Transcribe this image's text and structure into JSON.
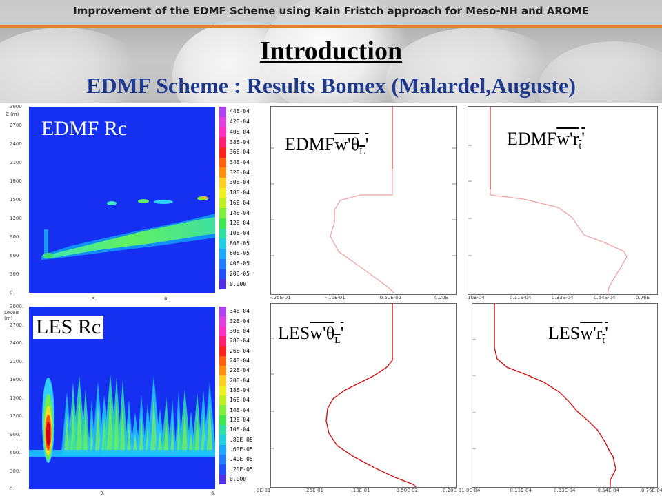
{
  "header": {
    "topbar": "Improvement of the EDMF Scheme using Kain Fristch approach for Meso-NH and AROME",
    "title": "Introduction",
    "subtitle": "EDMF Scheme : Results Bomex (Malardel,Auguste)"
  },
  "colors": {
    "accent_rule": "#e0822c",
    "subtitle": "#1f3a8c",
    "contour_background": "#1530f0",
    "edmf_profile_line": "#f3a0a0",
    "les_profile_line": "#d01010"
  },
  "edmf_rc": {
    "label": "EDMF Rc",
    "y_axis_title": "Z (m)",
    "y_ticks": [
      "3000",
      "2700",
      "2400",
      "2100",
      "1800",
      "1500",
      "1200",
      "900",
      "600",
      "300",
      "0"
    ],
    "x_ticks": [
      "3.",
      "6."
    ],
    "colorbar": [
      "44E-04",
      "42E-04",
      "40E-04",
      "38E-04",
      "36E-04",
      "34E-04",
      "32E-04",
      "30E-04",
      "18E-04",
      "16E-04",
      "14E-04",
      "12E-04",
      "10E-04",
      "80E-05",
      "60E-05",
      "40E-05",
      "20E-05",
      "0.000"
    ]
  },
  "les_rc": {
    "label": "LES Rc",
    "y_axis_title": "Levels (m)",
    "y_ticks": [
      "3000.",
      "2700.",
      "2400.",
      "2100.",
      "1800.",
      "1500.",
      "1200.",
      "900.",
      "600.",
      "300.",
      "0."
    ],
    "x_ticks": [
      "3.",
      "6."
    ],
    "colorbar": [
      "34E-04",
      "32E-04",
      "30E-04",
      "28E-04",
      "26E-04",
      "24E-04",
      "22E-04",
      "20E-04",
      "18E-04",
      "16E-04",
      "14E-04",
      "12E-04",
      "10E-04",
      ".80E-05",
      ".60E-05",
      ".40E-05",
      ".20E-05",
      "0.000"
    ]
  },
  "profiles": {
    "edmf_theta": {
      "label_left": "EDMF",
      "label_var": "w'θ",
      "label_sub": "L",
      "label_end": "'",
      "x_ticks": [
        "-.25E-01",
        "-.10E-01",
        "0.50E-02",
        "0.20E"
      ]
    },
    "edmf_rt": {
      "label_left": "EDMF",
      "label_var": "w'r",
      "label_sub": "t",
      "label_end": "'",
      "x_ticks": [
        "10E-04",
        "0.11E-04",
        "0.33E-04",
        "0.54E-04",
        "0.76E"
      ]
    },
    "les_theta": {
      "label_left": "LES",
      "label_var": "w'θ",
      "label_sub": "L",
      "label_end": "'",
      "x_ticks": [
        "0E-01",
        "-.25E-01",
        "-.10E-01",
        "0.50E-02",
        "0.20E-01"
      ]
    },
    "les_rt": {
      "label_left": "LES",
      "label_var": "w'r",
      "label_sub": "t",
      "label_end": "'",
      "x_ticks": [
        "0E-04",
        "0.11E-04",
        "0.33E-04",
        "0.54E-04",
        "0.76E-04"
      ]
    }
  }
}
